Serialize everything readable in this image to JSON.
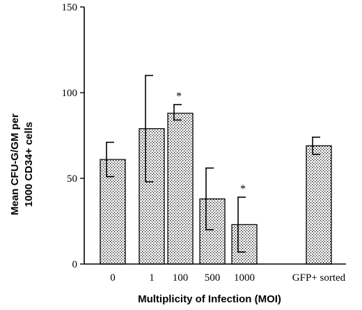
{
  "chart_data": {
    "type": "bar",
    "categories": [
      "0",
      "1",
      "100",
      "500",
      "1000",
      "GFP+ sorted"
    ],
    "series": [
      {
        "values": [
          61,
          79,
          88,
          38,
          23,
          69
        ],
        "error_upper": [
          10,
          31,
          5,
          18,
          16,
          5
        ],
        "error_lower": [
          10,
          31,
          4,
          18,
          16,
          5
        ]
      }
    ],
    "significance": [
      "",
      "",
      "*",
      "",
      "*",
      ""
    ],
    "xlabel": "Multiplicity of Infection (MOI)",
    "ylabel_line1": "Mean CFU-G/GM per",
    "ylabel_line2": "1000 CD34+ cells",
    "ylim": [
      0,
      150
    ],
    "yticks": [
      "0",
      "50",
      "100",
      "150"
    ],
    "bar_fill": "stippled-gray",
    "grid": false
  }
}
